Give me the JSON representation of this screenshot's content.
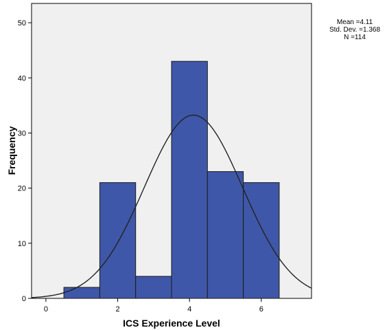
{
  "chart_data": {
    "type": "bar",
    "subtype": "histogram",
    "xlabel": "ICS Experience Level",
    "ylabel": "Frequency",
    "xlim": [
      -0.4,
      7.4
    ],
    "ylim": [
      0,
      53.5
    ],
    "x_ticks": [
      0,
      2,
      4,
      6
    ],
    "y_ticks": [
      0,
      10,
      20,
      30,
      40,
      50
    ],
    "bins": [
      {
        "center": 1,
        "width": 1,
        "value": 2
      },
      {
        "center": 2,
        "width": 1,
        "value": 21
      },
      {
        "center": 3,
        "width": 1,
        "value": 4
      },
      {
        "center": 4,
        "width": 1,
        "value": 43
      },
      {
        "center": 5,
        "width": 1,
        "value": 23
      },
      {
        "center": 6,
        "width": 1,
        "value": 21
      }
    ],
    "normal_curve": {
      "mean": 4.11,
      "std_dev": 1.368,
      "n": 114
    },
    "colors": {
      "bar_fill": "#3f57a8",
      "bar_stroke": "#1a1a1a",
      "plot_bg": "#f0f0f0",
      "curve": "#222222"
    }
  },
  "stats": {
    "mean": "Mean =4.11",
    "std_dev": "Std. Dev. =1.368",
    "n": "N =114"
  }
}
